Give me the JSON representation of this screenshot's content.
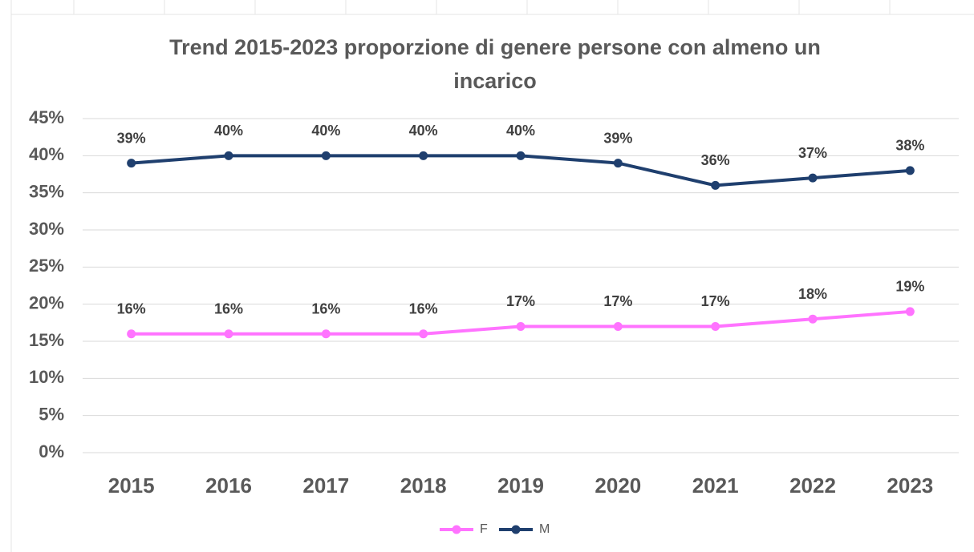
{
  "chart_data": {
    "type": "line",
    "title": "Trend 2015-2023 proporzione di genere persone con almeno un incarico",
    "categories": [
      "2015",
      "2016",
      "2017",
      "2018",
      "2019",
      "2020",
      "2021",
      "2022",
      "2023"
    ],
    "series": [
      {
        "name": "F",
        "color": "#ff73ff",
        "values": [
          16,
          16,
          16,
          16,
          17,
          17,
          17,
          18,
          19
        ],
        "value_labels": [
          "16%",
          "16%",
          "16%",
          "16%",
          "17%",
          "17%",
          "17%",
          "18%",
          "19%"
        ]
      },
      {
        "name": "M",
        "color": "#1f3f6e",
        "values": [
          39,
          40,
          40,
          40,
          40,
          39,
          36,
          37,
          38
        ],
        "value_labels": [
          "39%",
          "40%",
          "40%",
          "40%",
          "40%",
          "39%",
          "36%",
          "37%",
          "38%"
        ]
      }
    ],
    "ylim": [
      0,
      45
    ],
    "yticks": [
      {
        "value": 0,
        "label": "0%"
      },
      {
        "value": 5,
        "label": "5%"
      },
      {
        "value": 10,
        "label": "10%"
      },
      {
        "value": 15,
        "label": "15%"
      },
      {
        "value": 20,
        "label": "20%"
      },
      {
        "value": 25,
        "label": "25%"
      },
      {
        "value": 30,
        "label": "30%"
      },
      {
        "value": 35,
        "label": "35%"
      },
      {
        "value": 40,
        "label": "40%"
      },
      {
        "value": 45,
        "label": "45%"
      }
    ],
    "grid": true,
    "legend": "bottom"
  }
}
